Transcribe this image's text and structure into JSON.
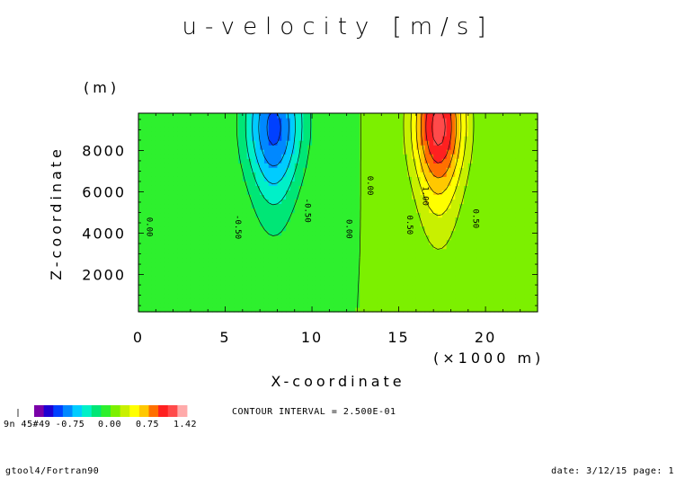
{
  "chart_data": {
    "type": "heatmap",
    "title": "u-velocity [m/s]",
    "xlabel": "X-coordinate",
    "ylabel": "Z-coordinate",
    "x_unit": "(×1000 m)",
    "y_unit": "(m)",
    "xlim": [
      0,
      23
    ],
    "ylim": [
      200,
      9800
    ],
    "x_ticks": [
      0,
      5,
      10,
      15,
      20
    ],
    "x_tick_labels": [
      "0",
      "5",
      "10",
      "15",
      "20"
    ],
    "y_ticks": [
      2000,
      4000,
      6000,
      8000
    ],
    "y_tick_labels": [
      "2000",
      "4000",
      "6000",
      "8000"
    ],
    "contour_interval_text": "CONTOUR INTERVAL = 2.500E-01",
    "contour_labels": [
      {
        "x": 0.5,
        "y": 4300,
        "text": "0.00"
      },
      {
        "x": 5.6,
        "y": 4300,
        "text": "-0.50"
      },
      {
        "x": 9.6,
        "y": 5100,
        "text": "-0.50"
      },
      {
        "x": 12.0,
        "y": 4200,
        "text": "0.00"
      },
      {
        "x": 13.2,
        "y": 6300,
        "text": "0.00"
      },
      {
        "x": 15.5,
        "y": 4400,
        "text": "0.50"
      },
      {
        "x": 16.4,
        "y": 5800,
        "text": "1.00"
      },
      {
        "x": 19.3,
        "y": 4700,
        "text": "0.50"
      }
    ],
    "u_max": 1.42,
    "colorbar": {
      "colors": [
        "#7a00a8",
        "#1f00d2",
        "#0040ff",
        "#0088ff",
        "#00ccff",
        "#00f0c8",
        "#00e676",
        "#2ef02e",
        "#7cf000",
        "#c8f000",
        "#ffff00",
        "#ffc800",
        "#ff7000",
        "#ff2020",
        "#ff4a4a",
        "#ffaaaa"
      ],
      "labels": [
        "-0.75",
        "0.00",
        "0.75",
        "1.42"
      ],
      "overlapping_left_label": "9n 45#49"
    },
    "grid": false
  },
  "footer": {
    "left": "gtool4/Fortran90",
    "right": "date: 3/12/15 page: 1"
  }
}
